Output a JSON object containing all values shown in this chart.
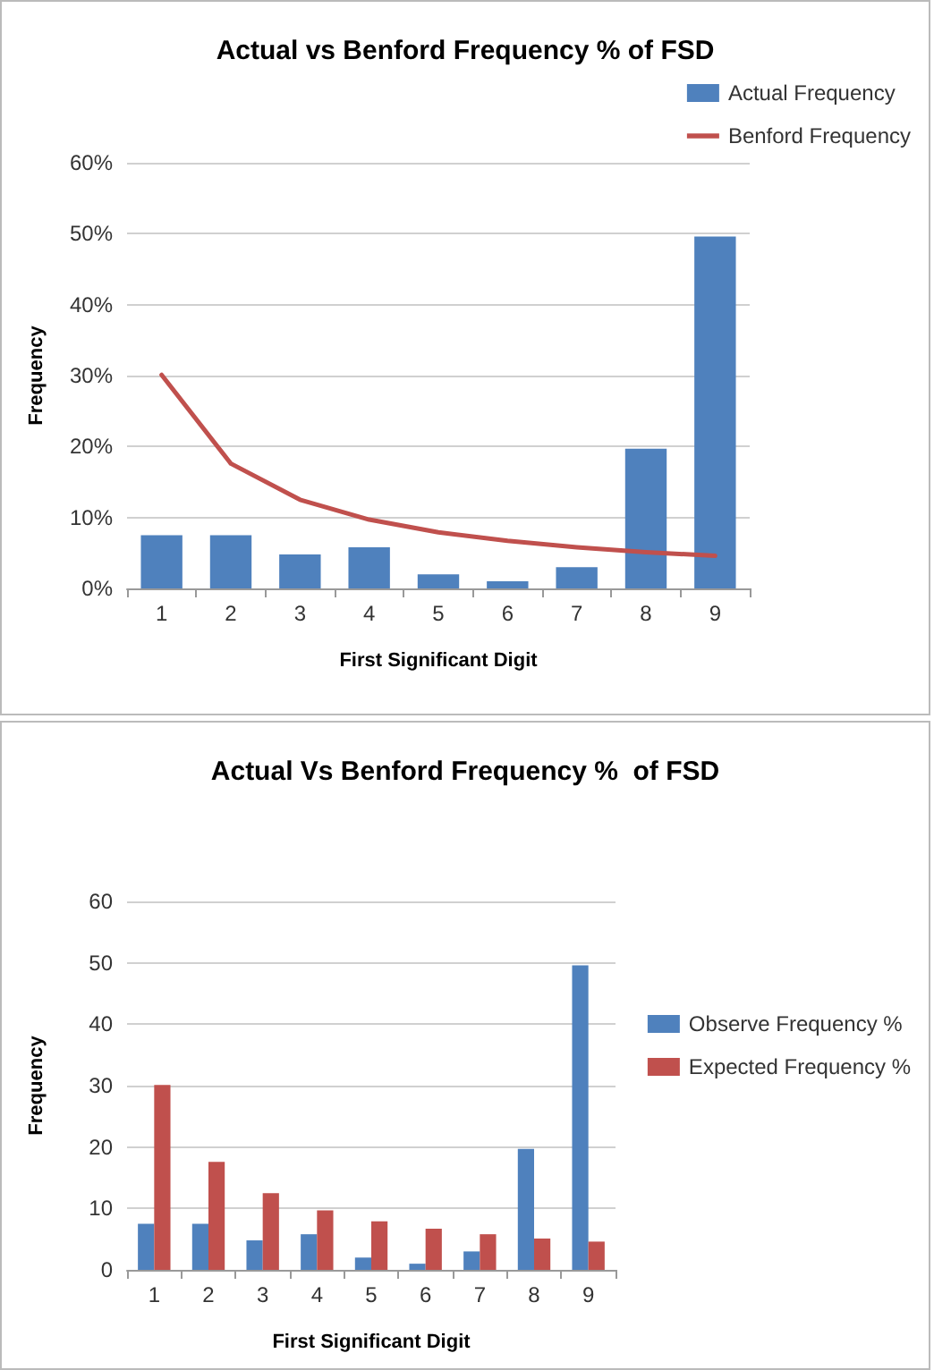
{
  "chart_data": [
    {
      "type": "bar",
      "title": "Actual vs Benford Frequency % of FSD",
      "xlabel": "First Significant Digit",
      "ylabel": "Frequency",
      "categories": [
        "1",
        "2",
        "3",
        "4",
        "5",
        "6",
        "7",
        "8",
        "9"
      ],
      "series": [
        {
          "name": "Actual Frequency",
          "color": "#4f81bd",
          "values": [
            7.5,
            7.5,
            4.8,
            5.8,
            2,
            1,
            3,
            19.7,
            49.6
          ]
        },
        {
          "name": "Benford Frequency",
          "type": "line",
          "color": "#c0504d",
          "values": [
            30.1,
            17.6,
            12.5,
            9.7,
            7.9,
            6.7,
            5.8,
            5.1,
            4.6
          ]
        }
      ],
      "ylim": [
        0,
        60
      ],
      "yticks": [
        {
          "value": 0,
          "label": "0%"
        },
        {
          "value": 10,
          "label": "10%"
        },
        {
          "value": 20,
          "label": "20%"
        },
        {
          "value": 30,
          "label": "30%"
        },
        {
          "value": 40,
          "label": "40%"
        },
        {
          "value": 50,
          "label": "50%"
        },
        {
          "value": 60,
          "label": "60%"
        }
      ],
      "grid": "y",
      "legend": "top right",
      "marker": "none",
      "line_style": "solid"
    },
    {
      "type": "bar",
      "title": "Actual Vs Benford Frequency %  of FSD",
      "xlabel": "First Significant Digit",
      "ylabel": "Frequency",
      "categories": [
        "1",
        "2",
        "3",
        "4",
        "5",
        "6",
        "7",
        "8",
        "9"
      ],
      "series": [
        {
          "name": "Observe Frequency %",
          "color": "#4f81bd",
          "values": [
            7.5,
            7.5,
            4.8,
            5.8,
            2,
            1,
            3,
            19.7,
            49.6
          ]
        },
        {
          "name": "Expected Frequency %",
          "color": "#c0504d",
          "values": [
            30.1,
            17.6,
            12.5,
            9.7,
            7.9,
            6.7,
            5.8,
            5.1,
            4.6
          ]
        }
      ],
      "ylim": [
        0,
        60
      ],
      "yticks": [
        0,
        10,
        20,
        30,
        40,
        50,
        60
      ],
      "grid": "y",
      "legend": "right"
    }
  ]
}
